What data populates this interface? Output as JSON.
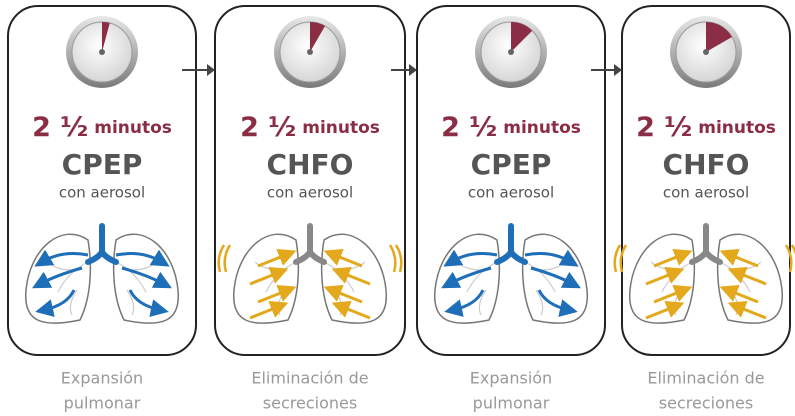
{
  "steps": [
    {
      "duration_number": "2 ½",
      "duration_unit": "minutos",
      "mode": "CPEP",
      "subtitle": "con aerosol",
      "caption": [
        "Expansión",
        "pulmonar"
      ]
    },
    {
      "duration_number": "2 ½",
      "duration_unit": "minutos",
      "mode": "CHFO",
      "subtitle": "con aerosol",
      "caption": [
        "Eliminación de",
        "secreciones"
      ]
    },
    {
      "duration_number": "2 ½",
      "duration_unit": "minutos",
      "mode": "CPEP",
      "subtitle": "con aerosol",
      "caption": [
        "Expansión",
        "pulmonar"
      ]
    },
    {
      "duration_number": "2 ½",
      "duration_unit": "minutos",
      "mode": "CHFO",
      "subtitle": "con aerosol",
      "caption": [
        "Eliminación de",
        "secreciones"
      ]
    }
  ]
}
